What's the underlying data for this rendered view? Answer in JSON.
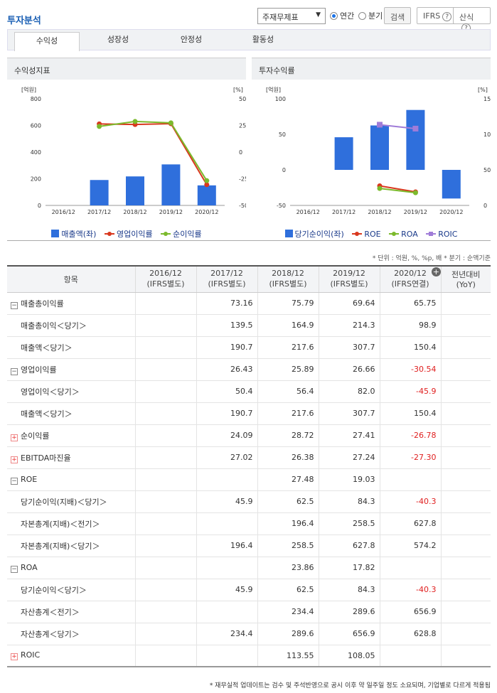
{
  "header": {
    "title": "투자분석",
    "select_value": "주재무제표",
    "radio_annual": "연간",
    "radio_quarter": "분기",
    "search": "검색",
    "ifrs": "IFRS",
    "formula": "산식"
  },
  "tabs": [
    "수익성",
    "성장성",
    "안정성",
    "활동성"
  ],
  "left_panel": {
    "title": "수익성지표",
    "unit_left": "[억원]",
    "unit_right": "[%]"
  },
  "right_panel": {
    "title": "투자수익률",
    "unit_left": "[억원]",
    "unit_right": "[%]"
  },
  "left_legend": [
    "매출액(좌)",
    "영업이익률",
    "순이익률"
  ],
  "right_legend": [
    "당기순이익(좌)",
    "ROE",
    "ROA",
    "ROIC"
  ],
  "colors": {
    "bar": "#2f6fdc",
    "red": "#d9381e",
    "green": "#7cba2c",
    "purple": "#a07cd8",
    "title": "#1a5fb4",
    "negative": "#e02020"
  },
  "chart_data": [
    {
      "type": "bar",
      "title": "수익성지표",
      "categories": [
        "2016/12",
        "2017/12",
        "2018/12",
        "2019/12",
        "2020/12"
      ],
      "ylim": [
        0,
        800
      ],
      "y2lim": [
        -50,
        50
      ],
      "yticks": [
        0,
        200,
        400,
        600,
        800
      ],
      "y2ticks": [
        -50,
        -25,
        0,
        25,
        50
      ],
      "series": [
        {
          "name": "매출액(좌)",
          "type": "bar",
          "axis": "left",
          "values": [
            null,
            190.7,
            217.6,
            307.7,
            150.4
          ]
        },
        {
          "name": "영업이익률",
          "type": "line",
          "axis": "right",
          "values": [
            null,
            26.43,
            25.89,
            26.66,
            -30.54
          ]
        },
        {
          "name": "순이익률",
          "type": "line",
          "axis": "right",
          "values": [
            null,
            24.09,
            28.72,
            27.41,
            -26.78
          ]
        }
      ]
    },
    {
      "type": "bar",
      "title": "투자수익률",
      "categories": [
        "2016/12",
        "2017/12",
        "2018/12",
        "2019/12",
        "2020/12"
      ],
      "ylim": [
        -50,
        100
      ],
      "y2lim": [
        0,
        150
      ],
      "yticks": [
        -50,
        0,
        50,
        100
      ],
      "y2ticks": [
        0,
        50,
        100,
        150
      ],
      "series": [
        {
          "name": "당기순이익(좌)",
          "type": "bar",
          "axis": "left",
          "values": [
            null,
            45.9,
            62.5,
            84.3,
            -40.3
          ]
        },
        {
          "name": "ROE",
          "type": "line",
          "axis": "right",
          "values": [
            null,
            null,
            27.48,
            19.03,
            null
          ]
        },
        {
          "name": "ROA",
          "type": "line",
          "axis": "right",
          "values": [
            null,
            null,
            23.86,
            17.82,
            null
          ]
        },
        {
          "name": "ROIC",
          "type": "line",
          "axis": "right",
          "values": [
            null,
            null,
            113.55,
            108.05,
            null
          ]
        }
      ]
    }
  ],
  "unit_note": "* 단위 : 억원, %, %p, 배   * 분기 : 순액기준",
  "table": {
    "header_item": "항목",
    "columns": [
      {
        "year": "2016/12",
        "basis": "(IFRS별도)"
      },
      {
        "year": "2017/12",
        "basis": "(IFRS별도)"
      },
      {
        "year": "2018/12",
        "basis": "(IFRS별도)"
      },
      {
        "year": "2019/12",
        "basis": "(IFRS별도)"
      },
      {
        "year": "2020/12",
        "basis": "(IFRS연결)"
      }
    ],
    "yoy_line1": "전년대비",
    "yoy_line2": "(YoY)",
    "rows": [
      {
        "label": "매출총이익률",
        "toggle": "minus",
        "sub": false,
        "values": [
          "",
          "73.16",
          "75.79",
          "69.64",
          "65.75",
          ""
        ]
      },
      {
        "label": "매출총이익＜당기＞",
        "sub": true,
        "values": [
          "",
          "139.5",
          "164.9",
          "214.3",
          "98.9",
          ""
        ]
      },
      {
        "label": "매출액＜당기＞",
        "sub": true,
        "values": [
          "",
          "190.7",
          "217.6",
          "307.7",
          "150.4",
          ""
        ]
      },
      {
        "label": "영업이익률",
        "toggle": "minus",
        "sub": false,
        "values": [
          "",
          "26.43",
          "25.89",
          "26.66",
          "-30.54",
          ""
        ]
      },
      {
        "label": "영업이익＜당기＞",
        "sub": true,
        "values": [
          "",
          "50.4",
          "56.4",
          "82.0",
          "-45.9",
          ""
        ]
      },
      {
        "label": "매출액＜당기＞",
        "sub": true,
        "values": [
          "",
          "190.7",
          "217.6",
          "307.7",
          "150.4",
          ""
        ]
      },
      {
        "label": "순이익률",
        "toggle": "plus",
        "sub": false,
        "values": [
          "",
          "24.09",
          "28.72",
          "27.41",
          "-26.78",
          ""
        ]
      },
      {
        "label": "EBITDA마진율",
        "toggle": "plus",
        "sub": false,
        "values": [
          "",
          "27.02",
          "26.38",
          "27.24",
          "-27.30",
          ""
        ]
      },
      {
        "label": "ROE",
        "toggle": "minus",
        "sub": false,
        "values": [
          "",
          "",
          "27.48",
          "19.03",
          "",
          ""
        ]
      },
      {
        "label": "당기순이익(지배)＜당기＞",
        "sub": true,
        "values": [
          "",
          "45.9",
          "62.5",
          "84.3",
          "-40.3",
          ""
        ]
      },
      {
        "label": "자본총계(지배)＜전기＞",
        "sub": true,
        "values": [
          "",
          "",
          "196.4",
          "258.5",
          "627.8",
          ""
        ]
      },
      {
        "label": "자본총계(지배)＜당기＞",
        "sub": true,
        "values": [
          "",
          "196.4",
          "258.5",
          "627.8",
          "574.2",
          ""
        ]
      },
      {
        "label": "ROA",
        "toggle": "minus",
        "sub": false,
        "values": [
          "",
          "",
          "23.86",
          "17.82",
          "",
          ""
        ]
      },
      {
        "label": "당기순이익＜당기＞",
        "sub": true,
        "values": [
          "",
          "45.9",
          "62.5",
          "84.3",
          "-40.3",
          ""
        ]
      },
      {
        "label": "자산총계＜전기＞",
        "sub": true,
        "values": [
          "",
          "",
          "234.4",
          "289.6",
          "656.9",
          ""
        ]
      },
      {
        "label": "자산총계＜당기＞",
        "sub": true,
        "values": [
          "",
          "234.4",
          "289.6",
          "656.9",
          "628.8",
          ""
        ]
      },
      {
        "label": "ROIC",
        "toggle": "plus",
        "sub": false,
        "values": [
          "",
          "",
          "113.55",
          "108.05",
          "",
          ""
        ]
      }
    ]
  },
  "footnote": "* 재무실적 업데이트는 검수 및 주석반영으로 공시 이후 약 일주일 정도 소요되며, 기업별로 다르게 적용됨"
}
